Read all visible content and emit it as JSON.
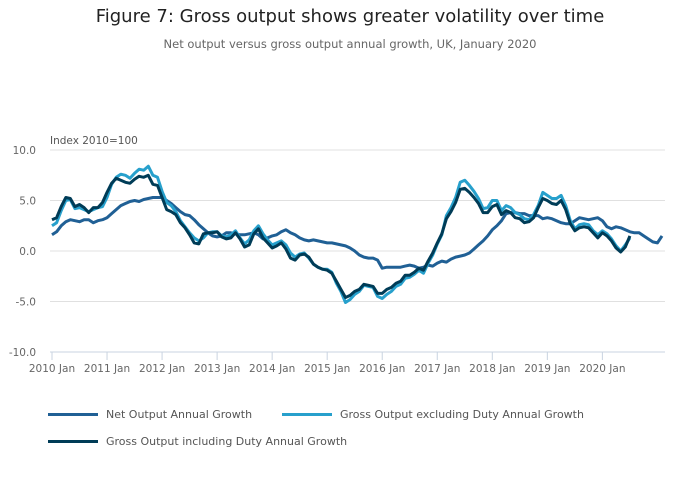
{
  "title": "Figure 7: Gross output shows greater volatility over time",
  "subtitle": "Net output versus gross output annual growth, UK, January 2020",
  "chart_data": {
    "type": "line",
    "title": "Figure 7: Gross output shows greater volatility over time",
    "subtitle": "Net output versus gross output annual growth, UK, January 2020",
    "ylabel": "Index 2010=100",
    "xlabel": "",
    "ylim": [
      -10,
      10
    ],
    "yticks": [
      "10.0",
      "5.0",
      "0.0",
      "-5.0",
      "-10.0"
    ],
    "ytick_values": [
      10,
      5,
      0,
      -5,
      -10
    ],
    "xticks": [
      "2010 Jan",
      "2011 Jan",
      "2012 Jan",
      "2013 Jan",
      "2014 Jan",
      "2015 Jan",
      "2016 Jan",
      "2017 Jan",
      "2018 Jan",
      "2019 Jan",
      "2020 Jan"
    ],
    "x_start": "2010 Jan",
    "x_end": "2020 Jan",
    "frequency": "monthly",
    "grid": true,
    "legend_position": "bottom",
    "series": [
      {
        "name": "Net Output Annual Growth",
        "color": "#206095",
        "values": [
          1.6,
          1.9,
          2.5,
          2.9,
          3.1,
          3.0,
          2.9,
          3.1,
          3.1,
          2.8,
          3.0,
          3.1,
          3.3,
          3.7,
          4.1,
          4.5,
          4.7,
          4.9,
          5.0,
          4.9,
          5.1,
          5.2,
          5.3,
          5.3,
          5.3,
          5.0,
          4.7,
          4.3,
          3.9,
          3.6,
          3.5,
          3.1,
          2.6,
          2.2,
          1.8,
          1.5,
          1.4,
          1.5,
          1.8,
          1.8,
          1.7,
          1.6,
          1.6,
          1.7,
          1.8,
          1.6,
          1.2,
          1.3,
          1.5,
          1.6,
          1.9,
          2.1,
          1.8,
          1.6,
          1.3,
          1.1,
          1.0,
          1.1,
          1.0,
          0.9,
          0.8,
          0.8,
          0.7,
          0.6,
          0.5,
          0.3,
          0.0,
          -0.4,
          -0.6,
          -0.7,
          -0.7,
          -0.9,
          -1.7,
          -1.6,
          -1.6,
          -1.6,
          -1.6,
          -1.5,
          -1.4,
          -1.5,
          -1.7,
          -1.6,
          -1.4,
          -1.5,
          -1.2,
          -1.0,
          -1.1,
          -0.8,
          -0.6,
          -0.5,
          -0.4,
          -0.2,
          0.2,
          0.6,
          1.0,
          1.5,
          2.1,
          2.5,
          3.0,
          3.7,
          3.8,
          3.8,
          3.7,
          3.7,
          3.5,
          3.5,
          3.5,
          3.2,
          3.3,
          3.2,
          3.0,
          2.8,
          2.7,
          2.7,
          3.0,
          3.3,
          3.2,
          3.1,
          3.2,
          3.3,
          3.0,
          2.4,
          2.2,
          2.4,
          2.3,
          2.1,
          1.9,
          1.8,
          1.8,
          1.5,
          1.2,
          0.9,
          0.8,
          1.5
        ]
      },
      {
        "name": "Gross Output excluding Duty Annual Growth",
        "color": "#27A0CC",
        "values": [
          2.5,
          2.8,
          4.0,
          5.0,
          5.1,
          4.2,
          4.3,
          4.1,
          3.9,
          4.1,
          4.3,
          4.4,
          5.3,
          6.6,
          7.3,
          7.6,
          7.5,
          7.2,
          7.7,
          8.1,
          8.0,
          8.4,
          7.5,
          7.3,
          5.9,
          4.8,
          4.5,
          3.9,
          3.0,
          2.4,
          1.8,
          1.3,
          1.0,
          1.3,
          1.8,
          1.9,
          1.9,
          1.5,
          1.4,
          1.6,
          2.0,
          1.3,
          0.7,
          1.1,
          2.0,
          2.5,
          1.7,
          1.1,
          0.6,
          0.8,
          1.0,
          0.6,
          -0.2,
          -0.6,
          -0.3,
          -0.2,
          -0.7,
          -1.3,
          -1.6,
          -1.8,
          -1.8,
          -2.1,
          -3.2,
          -4.0,
          -5.1,
          -4.8,
          -4.3,
          -4.0,
          -3.4,
          -3.5,
          -3.6,
          -4.5,
          -4.7,
          -4.3,
          -4.0,
          -3.5,
          -3.3,
          -2.7,
          -2.6,
          -2.3,
          -1.9,
          -2.2,
          -1.2,
          -0.4,
          0.7,
          1.6,
          3.5,
          4.3,
          5.3,
          6.8,
          7.0,
          6.5,
          5.9,
          5.2,
          4.2,
          4.3,
          5.0,
          5.0,
          4.0,
          4.5,
          4.3,
          3.8,
          3.6,
          3.2,
          3.1,
          3.6,
          4.5,
          5.8,
          5.5,
          5.2,
          5.2,
          5.5,
          4.5,
          3.0,
          2.2,
          2.6,
          2.7,
          2.6,
          2.0,
          1.6,
          2.0,
          1.7,
          1.2,
          0.5,
          0.0,
          0.6,
          1.3
        ]
      },
      {
        "name": "Gross Output including Duty Annual Growth",
        "color": "#003C57",
        "values": [
          3.1,
          3.3,
          4.4,
          5.3,
          5.2,
          4.4,
          4.6,
          4.3,
          3.8,
          4.3,
          4.3,
          4.8,
          5.8,
          6.7,
          7.2,
          7.0,
          6.8,
          6.7,
          7.1,
          7.4,
          7.3,
          7.5,
          6.6,
          6.5,
          5.3,
          4.1,
          3.9,
          3.6,
          2.8,
          2.3,
          1.6,
          0.8,
          0.7,
          1.7,
          1.8,
          1.8,
          1.9,
          1.4,
          1.2,
          1.3,
          1.8,
          1.2,
          0.4,
          0.6,
          1.7,
          2.2,
          1.3,
          0.8,
          0.3,
          0.5,
          0.8,
          0.2,
          -0.7,
          -0.9,
          -0.4,
          -0.3,
          -0.6,
          -1.3,
          -1.6,
          -1.8,
          -1.9,
          -2.2,
          -3.0,
          -3.8,
          -4.6,
          -4.4,
          -4.0,
          -3.8,
          -3.3,
          -3.4,
          -3.5,
          -4.2,
          -4.2,
          -3.8,
          -3.6,
          -3.2,
          -3.0,
          -2.4,
          -2.4,
          -2.1,
          -1.7,
          -1.9,
          -1.0,
          -0.2,
          0.8,
          1.7,
          3.2,
          3.9,
          4.8,
          6.1,
          6.2,
          5.8,
          5.3,
          4.7,
          3.8,
          3.8,
          4.4,
          4.6,
          3.6,
          4.0,
          3.8,
          3.3,
          3.2,
          2.8,
          2.9,
          3.3,
          4.3,
          5.2,
          5.0,
          4.7,
          4.6,
          5.0,
          4.1,
          2.7,
          2.0,
          2.3,
          2.4,
          2.3,
          1.8,
          1.3,
          1.8,
          1.5,
          1.0,
          0.3,
          -0.1,
          0.4,
          1.5
        ]
      }
    ]
  }
}
